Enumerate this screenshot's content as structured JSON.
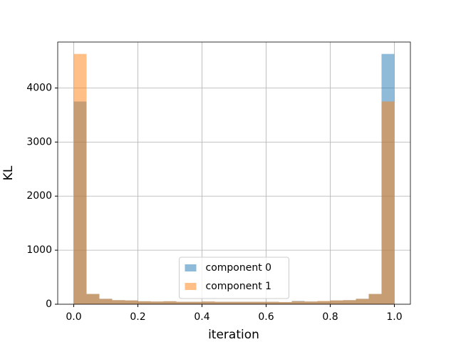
{
  "chart_data": {
    "type": "histogram",
    "xlabel": "iteration",
    "ylabel": "KL",
    "bins": [
      0,
      0.04,
      0.08,
      0.12,
      0.16,
      0.2,
      0.24,
      0.28,
      0.32,
      0.36,
      0.4,
      0.44,
      0.48,
      0.52,
      0.56,
      0.6,
      0.64,
      0.68,
      0.72,
      0.76,
      0.8,
      0.84,
      0.88,
      0.92,
      0.96,
      1
    ],
    "series": [
      {
        "name": "component 0",
        "color": "#1f77b4",
        "values": [
          3750,
          190,
          100,
          75,
          70,
          55,
          50,
          55,
          45,
          45,
          50,
          45,
          45,
          45,
          45,
          45,
          40,
          60,
          50,
          55,
          70,
          75,
          100,
          190,
          4630
        ]
      },
      {
        "name": "component 1",
        "color": "#ff7f0e",
        "values": [
          4630,
          190,
          100,
          75,
          70,
          55,
          50,
          55,
          45,
          45,
          50,
          45,
          45,
          45,
          45,
          45,
          40,
          55,
          50,
          60,
          70,
          75,
          100,
          190,
          3750
        ]
      }
    ],
    "opacity": 0.5,
    "xlim": [
      -0.05,
      1.05
    ],
    "ylim": [
      0,
      4850
    ],
    "xticks": [
      {
        "value": 0,
        "label": "0.0"
      },
      0.2,
      0.4,
      0.6,
      0.8,
      {
        "value": 1,
        "label": "1.0"
      }
    ],
    "yticks": [
      0,
      1000,
      2000,
      3000,
      4000
    ],
    "grid": true,
    "legend": "lower center"
  }
}
